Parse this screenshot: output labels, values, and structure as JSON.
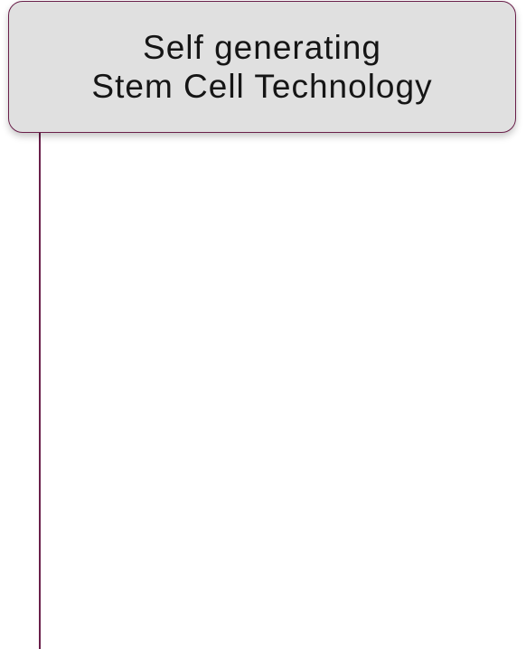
{
  "title_card": {
    "line_1": "Self generating",
    "line_2": "Stem Cell Technology"
  },
  "colors": {
    "accent": "#6a1f4a",
    "card_background": "#e0e0e0",
    "text": "#151515",
    "page_background": "#ffffff"
  }
}
